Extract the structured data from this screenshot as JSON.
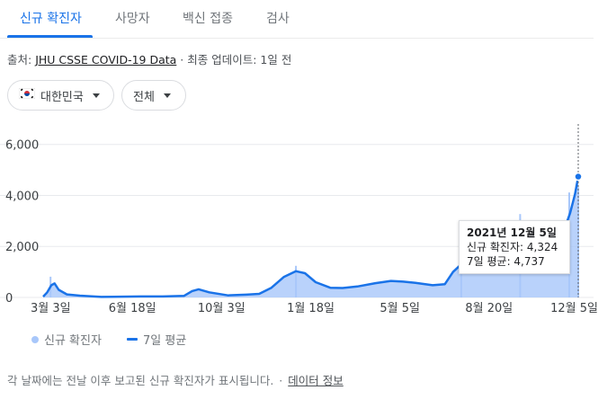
{
  "tabs": [
    {
      "label": "신규 확진자",
      "active": true
    },
    {
      "label": "사망자",
      "active": false
    },
    {
      "label": "백신 접종",
      "active": false
    },
    {
      "label": "검사",
      "active": false
    }
  ],
  "source": {
    "prefix": "출처: ",
    "link_text": "JHU CSSE COVID-19 Data",
    "updated": " · 최종 업데이트: 1일 전"
  },
  "filters": {
    "country": {
      "icon": "south-korea-flag-icon",
      "label": "대한민국"
    },
    "range": {
      "label": "전체"
    }
  },
  "colors": {
    "accent": "#1a73e8",
    "bar_fill": "#a8c7fa",
    "grid": "#e8eaed"
  },
  "tooltip": {
    "date": "2021년 12월 5일",
    "new_cases": "신규 확진자: 4,324",
    "avg": "7일 평균: 4,737"
  },
  "legend": {
    "cases": "신규 확진자",
    "avg": "7일 평균"
  },
  "footer": {
    "note": "각 날짜에는 전날 이후 보고된 신규 확진자가 표시됩니다.",
    "sep": "·",
    "link": "데이터 정보"
  },
  "chart_data": {
    "type": "area",
    "title": "",
    "xlabel": "",
    "ylabel": "",
    "ylim": [
      0,
      6800
    ],
    "y_ticks": [
      0,
      2000,
      4000,
      6000
    ],
    "y_tick_labels": [
      "0",
      "2,000",
      "4,000",
      "6,000"
    ],
    "x_tick_labels": [
      "3월 3일",
      "6월 18일",
      "10월 3일",
      "1월 18일",
      "5월 5일",
      "8월 20일",
      "12월 5일"
    ],
    "x_range": [
      "2020-02-20",
      "2021-12-05"
    ],
    "grid": true,
    "series": [
      {
        "name": "7일 평균",
        "x": [
          "2020-02-20",
          "2020-02-25",
          "2020-03-01",
          "2020-03-05",
          "2020-03-10",
          "2020-03-20",
          "2020-04-05",
          "2020-05-01",
          "2020-06-18",
          "2020-07-15",
          "2020-08-10",
          "2020-08-20",
          "2020-08-28",
          "2020-09-10",
          "2020-10-03",
          "2020-10-25",
          "2020-11-10",
          "2020-11-25",
          "2020-12-10",
          "2020-12-25",
          "2021-01-05",
          "2021-01-18",
          "2021-02-05",
          "2021-02-20",
          "2021-03-10",
          "2021-04-01",
          "2021-04-20",
          "2021-05-05",
          "2021-05-20",
          "2021-06-10",
          "2021-06-25",
          "2021-07-05",
          "2021-07-15",
          "2021-07-25",
          "2021-08-05",
          "2021-08-20",
          "2021-09-05",
          "2021-09-20",
          "2021-09-28",
          "2021-10-10",
          "2021-10-25",
          "2021-11-05",
          "2021-11-15",
          "2021-11-25",
          "2021-12-01",
          "2021-12-05"
        ],
        "values": [
          30,
          200,
          480,
          550,
          300,
          120,
          70,
          20,
          40,
          40,
          60,
          250,
          320,
          200,
          80,
          110,
          140,
          380,
          800,
          1030,
          950,
          600,
          380,
          370,
          430,
          560,
          650,
          620,
          570,
          480,
          520,
          1000,
          1300,
          1500,
          1700,
          1750,
          1780,
          1900,
          2600,
          2100,
          1550,
          2100,
          2400,
          3300,
          4050,
          4737
        ]
      },
      {
        "name": "신규 확진자",
        "x": [
          "2020-02-29",
          "2020-12-25",
          "2021-07-15",
          "2021-09-25",
          "2021-11-24",
          "2021-12-05"
        ],
        "values": [
          813,
          1240,
          1600,
          3270,
          4116,
          4324
        ]
      }
    ]
  }
}
